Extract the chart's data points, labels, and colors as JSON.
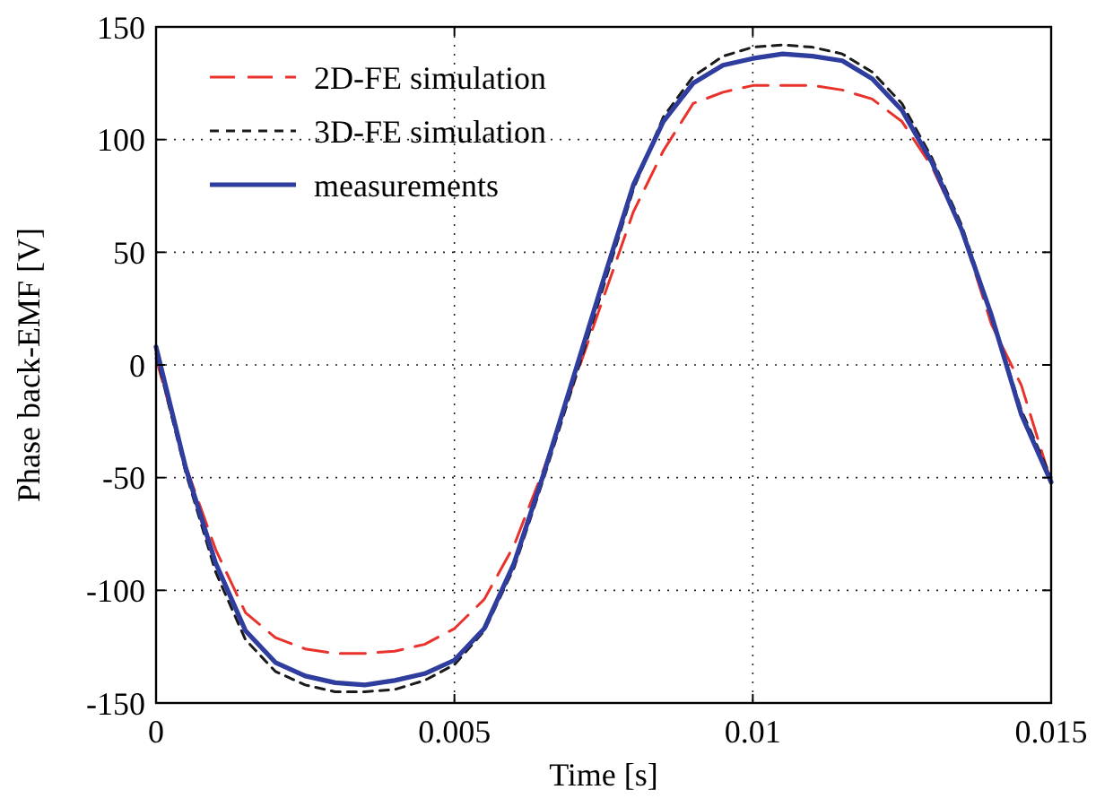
{
  "chart_data": {
    "type": "line",
    "xlabel": "Time [s]",
    "ylabel": "Phase back-EMF [V]",
    "x": [
      0,
      0.0005,
      0.001,
      0.0015,
      0.002,
      0.0025,
      0.003,
      0.0035,
      0.004,
      0.0045,
      0.005,
      0.0055,
      0.006,
      0.0065,
      0.007,
      0.0075,
      0.008,
      0.0085,
      0.009,
      0.0095,
      0.01,
      0.0105,
      0.011,
      0.0115,
      0.012,
      0.0125,
      0.013,
      0.0135,
      0.014,
      0.0145,
      0.015
    ],
    "series": [
      {
        "name": "2D-FE simulation",
        "color": "#e8322b",
        "line_style": "dashed",
        "values": [
          3,
          -45,
          -82,
          -110,
          -121,
          -126,
          -128,
          -128,
          -127,
          -124,
          -117,
          -104,
          -80,
          -46,
          -8,
          30,
          68,
          95,
          116,
          121,
          124,
          124,
          124,
          122,
          118,
          108,
          88,
          60,
          18,
          -9,
          -52
        ]
      },
      {
        "name": "3D-FE simulation",
        "color": "#1a1a1a",
        "line_style": "dotted",
        "values": [
          5,
          -48,
          -92,
          -122,
          -136,
          -142,
          -145,
          -145,
          -144,
          -140,
          -133,
          -118,
          -90,
          -50,
          -8,
          35,
          78,
          110,
          128,
          137,
          141,
          142,
          141,
          138,
          130,
          116,
          92,
          62,
          22,
          -20,
          -50
        ]
      },
      {
        "name": "measurements",
        "color": "#2e3d9e",
        "line_style": "solid",
        "values": [
          8,
          -46,
          -88,
          -118,
          -132,
          -138,
          -141,
          -142,
          -140,
          -137,
          -131,
          -117,
          -88,
          -48,
          -5,
          38,
          80,
          108,
          125,
          133,
          136,
          138,
          137,
          135,
          127,
          113,
          90,
          60,
          22,
          -22,
          -52
        ]
      }
    ],
    "xlim": [
      0,
      0.015
    ],
    "xticks": [
      0,
      0.005,
      0.01,
      0.015
    ],
    "ylim": [
      -150,
      150
    ],
    "yticks": [
      -150,
      -100,
      -50,
      0,
      50,
      100,
      150
    ],
    "grid": true,
    "legend": "top left",
    "marker": "none"
  }
}
